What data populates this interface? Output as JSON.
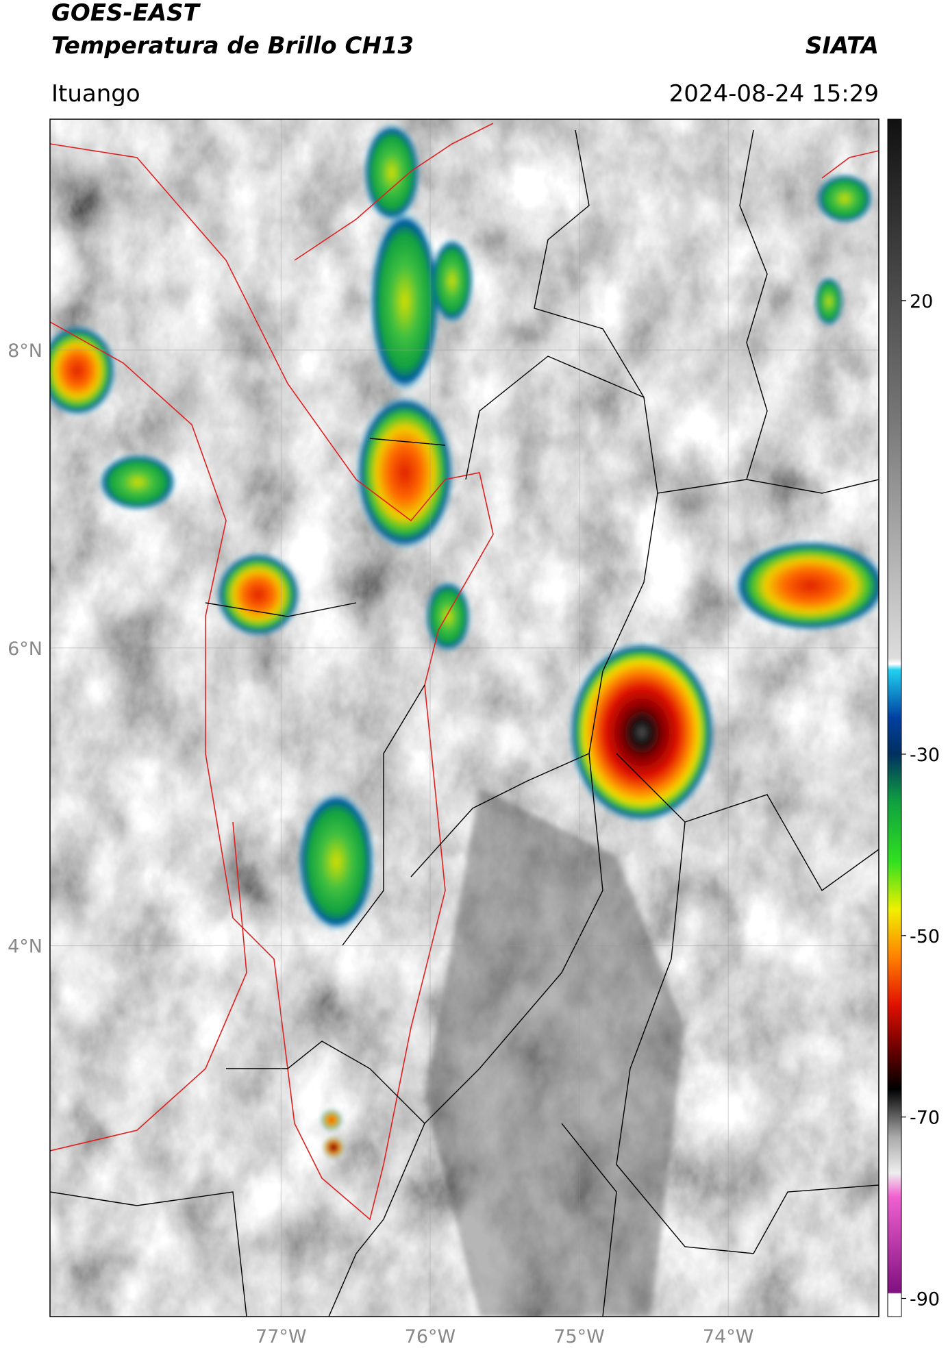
{
  "header": {
    "title": "GOES-EAST",
    "subtitle": "Temperatura de Brillo CH13",
    "org": "SIATA",
    "location": "Ituango",
    "datetime": "2024-08-24 15:29"
  },
  "map": {
    "xlim": [
      -78.55,
      -72.99
    ],
    "ylim": [
      1.51,
      9.55
    ],
    "xticks": [
      {
        "value": -77,
        "label": "77°W"
      },
      {
        "value": -76,
        "label": "76°W"
      },
      {
        "value": -75,
        "label": "75°W"
      },
      {
        "value": -74,
        "label": "74°W"
      }
    ],
    "yticks": [
      {
        "value": 8,
        "label": "8°N"
      },
      {
        "value": 6,
        "label": "6°N"
      },
      {
        "value": 4,
        "label": "4°N"
      }
    ],
    "grid": true
  },
  "colorbar": {
    "lim": [
      -92,
      40
    ],
    "ticks": [
      20,
      -30,
      -50,
      -70,
      -90
    ]
  }
}
